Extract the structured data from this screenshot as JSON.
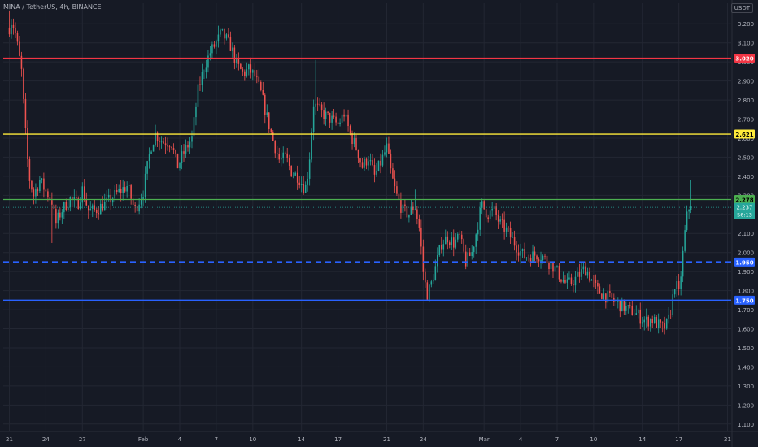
{
  "title": "MINA / TetherUS, 4h, BINANCE",
  "currency_label": "USDT",
  "colors": {
    "background": "#161a25",
    "grid": "#232733",
    "up": "#26a69a",
    "down": "#ef5350",
    "axis_text": "#b2b5be"
  },
  "chart_data": {
    "type": "candlestick",
    "y_axis": {
      "range": [
        1.065,
        3.265
      ],
      "ticks": [
        "1.100",
        "1.200",
        "1.300",
        "1.400",
        "1.500",
        "1.600",
        "1.700",
        "1.800",
        "1.900",
        "2.000",
        "2.100",
        "2.200",
        "2.300",
        "2.400",
        "2.500",
        "2.600",
        "2.700",
        "2.800",
        "2.900",
        "3.000",
        "3.100",
        "3.200"
      ]
    },
    "x_axis": {
      "ticks": [
        {
          "label": "21",
          "day": 0
        },
        {
          "label": "24",
          "day": 3
        },
        {
          "label": "27",
          "day": 6
        },
        {
          "label": "Feb",
          "day": 11
        },
        {
          "label": "4",
          "day": 14
        },
        {
          "label": "7",
          "day": 17
        },
        {
          "label": "10",
          "day": 20
        },
        {
          "label": "14",
          "day": 24
        },
        {
          "label": "17",
          "day": 27
        },
        {
          "label": "21",
          "day": 31
        },
        {
          "label": "24",
          "day": 34
        },
        {
          "label": "Mar",
          "day": 39
        },
        {
          "label": "4",
          "day": 42
        },
        {
          "label": "7",
          "day": 45
        },
        {
          "label": "10",
          "day": 48
        },
        {
          "label": "14",
          "day": 52
        },
        {
          "label": "17",
          "day": 55
        },
        {
          "label": "21",
          "day": 59
        }
      ],
      "day_range": [
        -0.5,
        59.3
      ]
    },
    "close_anchors": [
      [
        0,
        3.18
      ],
      [
        0.2,
        3.22
      ],
      [
        0.5,
        3.15
      ],
      [
        1.0,
        2.95
      ],
      [
        1.3,
        2.65
      ],
      [
        1.6,
        2.4
      ],
      [
        2.0,
        2.3
      ],
      [
        2.5,
        2.38
      ],
      [
        3.0,
        2.32
      ],
      [
        3.5,
        2.27
      ],
      [
        3.8,
        2.15
      ],
      [
        4.3,
        2.22
      ],
      [
        5.0,
        2.28
      ],
      [
        5.6,
        2.25
      ],
      [
        6.0,
        2.33
      ],
      [
        6.5,
        2.22
      ],
      [
        7.0,
        2.22
      ],
      [
        8.0,
        2.26
      ],
      [
        9.0,
        2.32
      ],
      [
        9.7,
        2.35
      ],
      [
        10.3,
        2.22
      ],
      [
        11.0,
        2.32
      ],
      [
        11.6,
        2.55
      ],
      [
        12.0,
        2.62
      ],
      [
        12.6,
        2.58
      ],
      [
        13.3,
        2.58
      ],
      [
        13.8,
        2.45
      ],
      [
        14.3,
        2.52
      ],
      [
        15.0,
        2.6
      ],
      [
        15.5,
        2.85
      ],
      [
        16.0,
        2.97
      ],
      [
        16.5,
        3.05
      ],
      [
        17.0,
        3.1
      ],
      [
        17.4,
        3.15
      ],
      [
        17.8,
        3.12
      ],
      [
        18.2,
        3.08
      ],
      [
        18.7,
        2.98
      ],
      [
        19.2,
        2.94
      ],
      [
        19.7,
        2.96
      ],
      [
        20.2,
        2.92
      ],
      [
        20.7,
        2.83
      ],
      [
        21.2,
        2.7
      ],
      [
        21.7,
        2.58
      ],
      [
        22.2,
        2.48
      ],
      [
        22.7,
        2.5
      ],
      [
        23.2,
        2.42
      ],
      [
        23.7,
        2.4
      ],
      [
        24.3,
        2.33
      ],
      [
        24.6,
        2.45
      ],
      [
        25.0,
        2.78
      ],
      [
        25.4,
        2.75
      ],
      [
        25.9,
        2.72
      ],
      [
        26.4,
        2.7
      ],
      [
        27.0,
        2.67
      ],
      [
        27.5,
        2.73
      ],
      [
        28.0,
        2.62
      ],
      [
        28.5,
        2.55
      ],
      [
        29.0,
        2.45
      ],
      [
        29.5,
        2.5
      ],
      [
        30.0,
        2.4
      ],
      [
        30.5,
        2.47
      ],
      [
        31.0,
        2.55
      ],
      [
        31.4,
        2.4
      ],
      [
        31.8,
        2.3
      ],
      [
        32.3,
        2.22
      ],
      [
        32.8,
        2.2
      ],
      [
        33.3,
        2.25
      ],
      [
        33.7,
        2.12
      ],
      [
        34.0,
        1.9
      ],
      [
        34.3,
        1.78
      ],
      [
        34.6,
        1.82
      ],
      [
        35.0,
        1.92
      ],
      [
        35.5,
        2.05
      ],
      [
        36.0,
        2.08
      ],
      [
        36.5,
        2.05
      ],
      [
        37.0,
        2.08
      ],
      [
        37.5,
        1.95
      ],
      [
        38.0,
        2.0
      ],
      [
        38.4,
        2.12
      ],
      [
        38.8,
        2.25
      ],
      [
        39.3,
        2.2
      ],
      [
        39.8,
        2.22
      ],
      [
        40.3,
        2.15
      ],
      [
        40.8,
        2.12
      ],
      [
        41.3,
        2.07
      ],
      [
        41.8,
        2.02
      ],
      [
        42.3,
        1.98
      ],
      [
        42.8,
        1.98
      ],
      [
        43.3,
        1.99
      ],
      [
        43.8,
        1.98
      ],
      [
        44.3,
        1.95
      ],
      [
        44.8,
        1.92
      ],
      [
        45.3,
        1.87
      ],
      [
        45.8,
        1.83
      ],
      [
        46.3,
        1.85
      ],
      [
        46.8,
        1.88
      ],
      [
        47.3,
        1.92
      ],
      [
        47.8,
        1.86
      ],
      [
        48.3,
        1.8
      ],
      [
        48.8,
        1.78
      ],
      [
        49.3,
        1.76
      ],
      [
        49.8,
        1.74
      ],
      [
        50.3,
        1.72
      ],
      [
        50.8,
        1.7
      ],
      [
        51.3,
        1.69
      ],
      [
        51.8,
        1.66
      ],
      [
        52.3,
        1.64
      ],
      [
        52.8,
        1.65
      ],
      [
        53.3,
        1.62
      ],
      [
        53.7,
        1.6
      ],
      [
        54.1,
        1.63
      ],
      [
        54.4,
        1.72
      ],
      [
        54.7,
        1.85
      ],
      [
        55.0,
        1.78
      ],
      [
        55.3,
        1.97
      ],
      [
        55.6,
        2.17
      ],
      [
        55.9,
        2.25
      ],
      [
        56.1,
        2.237
      ]
    ],
    "wick_extremes": [
      {
        "day": 0.05,
        "high": 3.265
      },
      {
        "day": 3.5,
        "low": 2.05
      },
      {
        "day": 17.2,
        "high": 3.19
      },
      {
        "day": 25.1,
        "high": 3.01
      },
      {
        "day": 31.2,
        "high": 2.61
      },
      {
        "day": 33.3,
        "high": 2.33
      },
      {
        "day": 34.3,
        "low": 1.75
      },
      {
        "day": 39.0,
        "high": 2.28
      },
      {
        "day": 53.7,
        "low": 1.58
      },
      {
        "day": 56.05,
        "high": 2.38
      }
    ],
    "horizontal_levels": [
      {
        "price": 3.02,
        "color": "#f23645",
        "style": "solid",
        "label": "3.020",
        "label_color": "#ffffff"
      },
      {
        "price": 2.621,
        "color": "#ffeb3b",
        "style": "solid",
        "label": "2.621",
        "label_color": "#000000"
      },
      {
        "price": 2.278,
        "color": "#4caf50",
        "style": "solid",
        "label": "2.278",
        "label_color": "#000000"
      },
      {
        "price": 1.95,
        "color": "#2962ff",
        "style": "dashed",
        "label": "1.950",
        "label_color": "#ffffff"
      },
      {
        "price": 1.75,
        "color": "#2962ff",
        "style": "solid",
        "label": "1.750",
        "label_color": "#ffffff"
      }
    ],
    "last_price": {
      "price": 2.237,
      "label": "2.237",
      "countdown": "56:13",
      "color": "#26a69a"
    }
  }
}
